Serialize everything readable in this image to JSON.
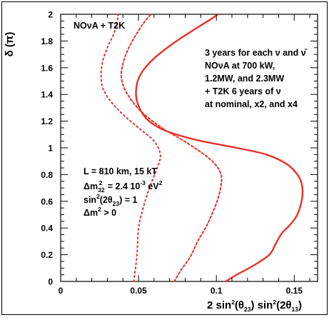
{
  "chart_data": {
    "type": "line",
    "title": "",
    "xlabel": "",
    "ylabel": "",
    "xlim": [
      0,
      0.165
    ],
    "ylim": [
      0,
      2
    ],
    "x_ticks": [
      0,
      0.05,
      0.1,
      0.15
    ],
    "x_tick_labels": [
      "0",
      "0.05",
      "0.1",
      "0.15"
    ],
    "y_ticks": [
      0,
      0.2,
      0.4,
      0.6,
      0.8,
      1,
      1.2,
      1.4,
      1.6,
      1.8,
      2
    ],
    "y_tick_labels": [
      "0",
      "0.2",
      "0.4",
      "0.6",
      "0.8",
      "1",
      "1.2",
      "1.4",
      "1.6",
      "1.8",
      "2"
    ],
    "grid": false,
    "colors": {
      "curves": "#e8302a",
      "axes": "#000000"
    },
    "series": [
      {
        "style": "dotted-sparse",
        "points": [
          [
            0.047,
            0.0
          ],
          [
            0.049,
            0.2
          ],
          [
            0.05,
            0.4
          ],
          [
            0.053,
            0.55
          ],
          [
            0.057,
            0.7
          ],
          [
            0.062,
            0.85
          ],
          [
            0.064,
            0.95
          ],
          [
            0.06,
            1.05
          ],
          [
            0.05,
            1.15
          ],
          [
            0.04,
            1.25
          ],
          [
            0.032,
            1.35
          ],
          [
            0.027,
            1.45
          ],
          [
            0.026,
            1.55
          ],
          [
            0.027,
            1.65
          ],
          [
            0.03,
            1.75
          ],
          [
            0.034,
            1.85
          ],
          [
            0.036,
            1.93
          ],
          [
            0.037,
            2.0
          ]
        ]
      },
      {
        "style": "dotted-dense",
        "points": [
          [
            0.073,
            0.0
          ],
          [
            0.077,
            0.08
          ],
          [
            0.083,
            0.18
          ],
          [
            0.088,
            0.3
          ],
          [
            0.093,
            0.4
          ],
          [
            0.097,
            0.5
          ],
          [
            0.101,
            0.62
          ],
          [
            0.103,
            0.72
          ],
          [
            0.103,
            0.8
          ],
          [
            0.099,
            0.88
          ],
          [
            0.091,
            0.96
          ],
          [
            0.078,
            1.06
          ],
          [
            0.065,
            1.15
          ],
          [
            0.051,
            1.28
          ],
          [
            0.042,
            1.42
          ],
          [
            0.039,
            1.53
          ],
          [
            0.04,
            1.63
          ],
          [
            0.043,
            1.73
          ],
          [
            0.047,
            1.82
          ],
          [
            0.053,
            1.93
          ],
          [
            0.058,
            2.0
          ]
        ]
      },
      {
        "style": "solid",
        "points": [
          [
            0.106,
            0.0
          ],
          [
            0.113,
            0.05
          ],
          [
            0.124,
            0.12
          ],
          [
            0.134,
            0.2
          ],
          [
            0.138,
            0.28
          ],
          [
            0.142,
            0.36
          ],
          [
            0.147,
            0.42
          ],
          [
            0.152,
            0.5
          ],
          [
            0.155,
            0.62
          ],
          [
            0.155,
            0.72
          ],
          [
            0.152,
            0.8
          ],
          [
            0.145,
            0.88
          ],
          [
            0.132,
            0.95
          ],
          [
            0.113,
            1.0
          ],
          [
            0.087,
            1.06
          ],
          [
            0.067,
            1.13
          ],
          [
            0.055,
            1.22
          ],
          [
            0.049,
            1.35
          ],
          [
            0.049,
            1.48
          ],
          [
            0.053,
            1.58
          ],
          [
            0.061,
            1.68
          ],
          [
            0.072,
            1.78
          ],
          [
            0.085,
            1.88
          ],
          [
            0.096,
            1.96
          ],
          [
            0.101,
            2.0
          ]
        ]
      }
    ]
  },
  "annotations": {
    "label_experiment": "NOνA + T2K",
    "scenario_line1": "3 years for each ν and ν̄",
    "scenario_line2": "NOνA at 700 kW,",
    "scenario_line3": "1.2MW, and 2.3MW",
    "scenario_line4": "+ T2K 6 years of ν",
    "scenario_line5": "at nominal, x2, and x4",
    "params_line1": "L = 810 km, 15 kT",
    "params_line2_pre": "Δm",
    "params_line2_sub": "32",
    "params_line2_sup": "2",
    "params_line2_mid": " = 2.4 10",
    "params_line2_exp": "-3",
    "params_line2_unit": " eV",
    "params_line2_unitsup": "2",
    "params_line3_pre": "sin",
    "params_line3_sup": "2",
    "params_line3_post": "(2θ",
    "params_line3_sub": "23",
    "params_line3_end": ") = 1",
    "params_line4_pre": "Δm",
    "params_line4_sup": "2",
    "params_line4_post": " > 0"
  },
  "axes": {
    "y_title_text": "δ (π)",
    "x_title_a": "2 sin",
    "x_title_a_sup": "2",
    "x_title_b": "(θ",
    "x_title_b_sub": "23",
    "x_title_c": ") sin",
    "x_title_c_sup": "2",
    "x_title_d": "(2θ",
    "x_title_d_sub": "13",
    "x_title_e": ")"
  }
}
